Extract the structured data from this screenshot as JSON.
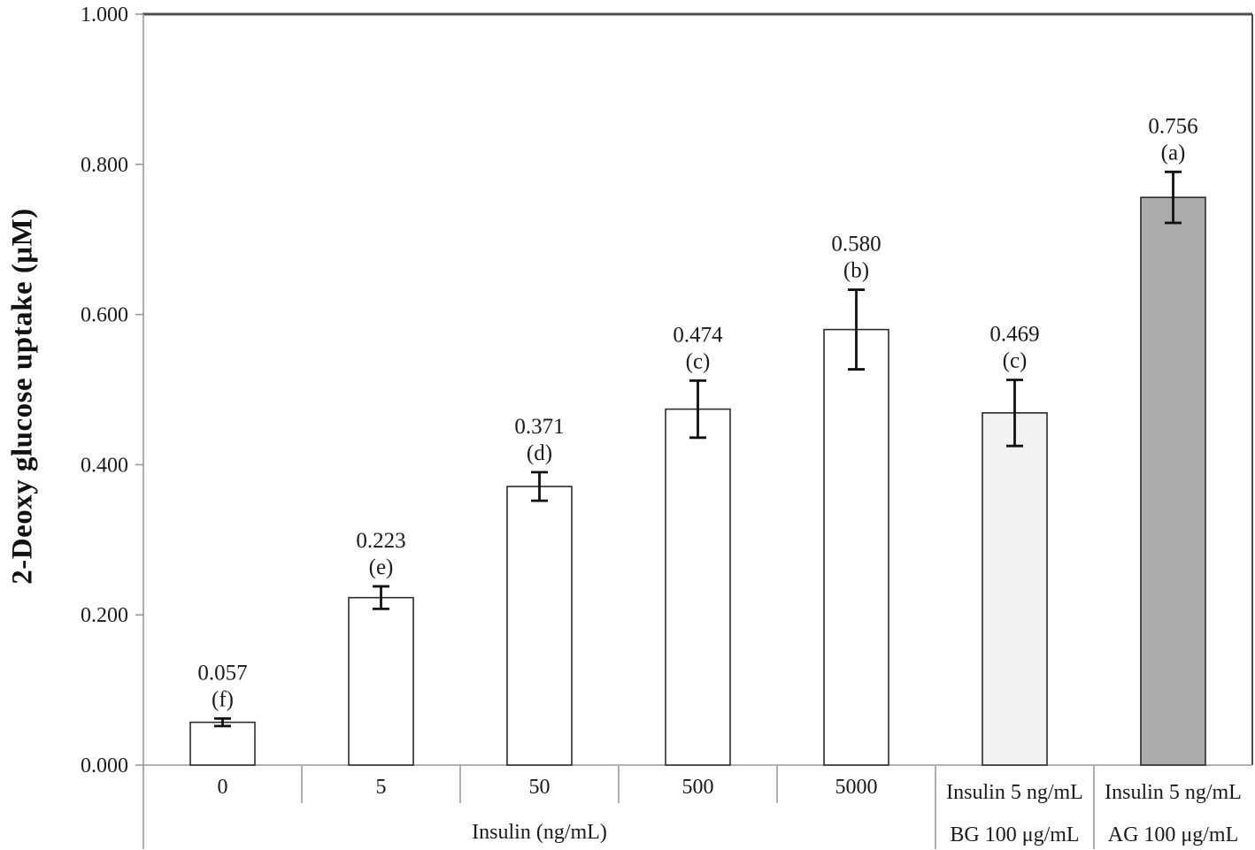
{
  "chart_data": {
    "type": "bar",
    "title": "",
    "ylabel": "2-Deoxy glucose uptake (μM)",
    "xlabel": "",
    "ylim": [
      0,
      1.0
    ],
    "grid": false,
    "legend": "none",
    "yticks": [
      {
        "value": 0.0,
        "label": "0.000"
      },
      {
        "value": 0.2,
        "label": "0.200"
      },
      {
        "value": 0.4,
        "label": "0.400"
      },
      {
        "value": 0.6,
        "label": "0.600"
      },
      {
        "value": 0.8,
        "label": "0.800"
      },
      {
        "value": 1.0,
        "label": "1.000"
      }
    ],
    "group_axis_label": "Insulin (ng/mL)",
    "group_span": [
      0,
      4
    ],
    "bars": [
      {
        "category": "0",
        "sub_label": "",
        "value": 0.057,
        "value_label": "0.057",
        "error": 0.005,
        "sig_letter": "(f)",
        "fill": "#ffffff"
      },
      {
        "category": "5",
        "sub_label": "",
        "value": 0.223,
        "value_label": "0.223",
        "error": 0.015,
        "sig_letter": "(e)",
        "fill": "#ffffff"
      },
      {
        "category": "50",
        "sub_label": "",
        "value": 0.371,
        "value_label": "0.371",
        "error": 0.019,
        "sig_letter": "(d)",
        "fill": "#ffffff"
      },
      {
        "category": "500",
        "sub_label": "",
        "value": 0.474,
        "value_label": "0.474",
        "error": 0.038,
        "sig_letter": "(c)",
        "fill": "#ffffff"
      },
      {
        "category": "5000",
        "sub_label": "",
        "value": 0.58,
        "value_label": "0.580",
        "error": 0.053,
        "sig_letter": "(b)",
        "fill": "#ffffff"
      },
      {
        "category": "Insulin 5 ng/mL",
        "sub_label": "BG 100 μg/mL",
        "value": 0.469,
        "value_label": "0.469",
        "error": 0.044,
        "sig_letter": "(c)",
        "fill": "#f2f2f2"
      },
      {
        "category": "Insulin 5 ng/mL",
        "sub_label": "AG 100 μg/mL",
        "value": 0.756,
        "value_label": "0.756",
        "error": 0.034,
        "sig_letter": "(a)",
        "fill": "#ababab"
      }
    ],
    "colors": {
      "bar_stroke": "#2b2b2b",
      "error_bar": "#111111",
      "axis": "#999999",
      "frame": "#4d4d4d",
      "text": "#1a1a1a",
      "background": "#ffffff"
    }
  }
}
